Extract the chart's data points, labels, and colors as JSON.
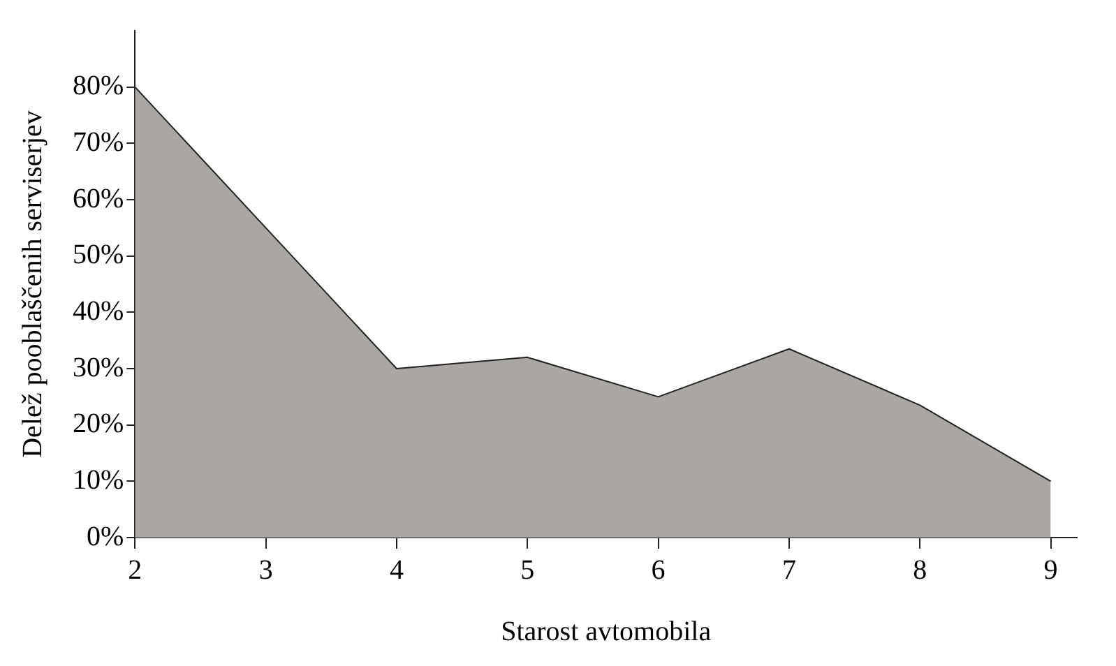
{
  "chart_data": {
    "type": "area",
    "xlabel": "Starost avtomobila",
    "ylabel": "Delež pooblaščenih serviserjev",
    "x": [
      2,
      3,
      4,
      5,
      6,
      7,
      8,
      9
    ],
    "series": [
      {
        "color": "#a8a7a5",
        "values": [
          80,
          55,
          30,
          32,
          25,
          33.5,
          23.5,
          10
        ]
      }
    ],
    "xlim": [
      2,
      9.2
    ],
    "xticks": [
      2,
      3,
      4,
      5,
      6,
      7,
      8,
      9
    ],
    "ylim": [
      0,
      90
    ],
    "yticks": [
      {
        "value": 0,
        "label": "0%"
      },
      {
        "value": 10,
        "label": "10%"
      },
      {
        "value": 20,
        "label": "20%"
      },
      {
        "value": 30,
        "label": "30%"
      },
      {
        "value": 40,
        "label": "40%"
      },
      {
        "value": 50,
        "label": "50%"
      },
      {
        "value": 60,
        "label": "60%"
      },
      {
        "value": 70,
        "label": "70%"
      },
      {
        "value": 80,
        "label": "80%"
      }
    ],
    "grid": false,
    "legend": false
  }
}
